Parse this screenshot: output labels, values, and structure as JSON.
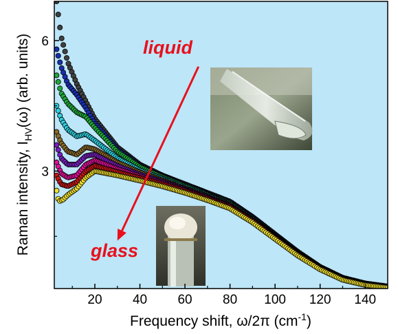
{
  "chart_data": {
    "type": "scatter",
    "title": "",
    "xlabel": "Frequency shift, ω/2π  (cm⁻¹)",
    "ylabel": "Raman intensity, I_HV(ω)  (arb. units)",
    "xlabel_parts": {
      "main": "Frequency shift, ω/2π  (cm",
      "sup": "-1",
      "close": ")"
    },
    "ylabel_parts": {
      "main": "Raman intensity, I",
      "sub": "HV",
      "rest": "(ω)  (arb. units)"
    },
    "xlim": [
      2,
      150
    ],
    "ylim": [
      0.3,
      6.9
    ],
    "x_ticks": [
      20,
      40,
      60,
      80,
      100,
      120,
      140
    ],
    "y_ticks": [
      3,
      6
    ],
    "background": "#bde6f8",
    "grid": false,
    "legend": "none",
    "annotations": [
      {
        "text": "liquid",
        "color": "#e8101c"
      },
      {
        "text": "glass",
        "color": "#e8101c"
      }
    ],
    "arrow": {
      "from": [
        66,
        5.4
      ],
      "to": [
        30,
        1.4
      ],
      "color": "#e8101c"
    },
    "insets": [
      {
        "name": "liquid-tube-photo",
        "description": "test tube with clear liquid"
      },
      {
        "name": "glass-tube-photo",
        "description": "vial with frosted glass top"
      }
    ],
    "series": [
      {
        "color": "#404040",
        "values": [
          [
            3,
            6.9
          ],
          [
            5,
            6.1
          ],
          [
            8,
            5.5
          ],
          [
            12,
            5.0
          ],
          [
            16,
            4.6
          ],
          [
            20,
            4.2
          ],
          [
            30,
            3.55
          ],
          [
            40,
            3.15
          ],
          [
            50,
            2.9
          ],
          [
            60,
            2.7
          ],
          [
            70,
            2.5
          ],
          [
            80,
            2.3
          ],
          [
            90,
            1.95
          ],
          [
            100,
            1.55
          ],
          [
            110,
            1.15
          ],
          [
            120,
            0.8
          ],
          [
            130,
            0.55
          ],
          [
            140,
            0.42
          ],
          [
            150,
            0.35
          ]
        ]
      },
      {
        "color": "#1a2fb0",
        "values": [
          [
            3,
            5.8
          ],
          [
            5,
            5.4
          ],
          [
            8,
            5.0
          ],
          [
            12,
            4.75
          ],
          [
            16,
            4.45
          ],
          [
            20,
            4.1
          ],
          [
            30,
            3.5
          ],
          [
            40,
            3.12
          ],
          [
            50,
            2.88
          ],
          [
            60,
            2.68
          ],
          [
            70,
            2.48
          ],
          [
            80,
            2.28
          ],
          [
            90,
            1.93
          ],
          [
            100,
            1.53
          ],
          [
            110,
            1.13
          ],
          [
            120,
            0.79
          ],
          [
            130,
            0.54
          ],
          [
            140,
            0.41
          ],
          [
            150,
            0.34
          ]
        ]
      },
      {
        "color": "#22a83a",
        "values": [
          [
            3,
            5.2
          ],
          [
            5,
            4.8
          ],
          [
            8,
            4.55
          ],
          [
            12,
            4.35
          ],
          [
            16,
            4.25
          ],
          [
            20,
            4.0
          ],
          [
            30,
            3.45
          ],
          [
            40,
            3.1
          ],
          [
            50,
            2.86
          ],
          [
            60,
            2.66
          ],
          [
            70,
            2.46
          ],
          [
            80,
            2.26
          ],
          [
            90,
            1.91
          ],
          [
            100,
            1.51
          ],
          [
            110,
            1.12
          ],
          [
            120,
            0.78
          ],
          [
            130,
            0.53
          ],
          [
            140,
            0.41
          ],
          [
            150,
            0.34
          ]
        ]
      },
      {
        "color": "#30d0e0",
        "values": [
          [
            3,
            4.5
          ],
          [
            5,
            4.2
          ],
          [
            8,
            3.95
          ],
          [
            12,
            3.8
          ],
          [
            16,
            3.85
          ],
          [
            20,
            3.7
          ],
          [
            30,
            3.3
          ],
          [
            40,
            3.02
          ],
          [
            50,
            2.82
          ],
          [
            60,
            2.63
          ],
          [
            70,
            2.44
          ],
          [
            80,
            2.24
          ],
          [
            90,
            1.9
          ],
          [
            100,
            1.5
          ],
          [
            110,
            1.11
          ],
          [
            120,
            0.78
          ],
          [
            130,
            0.53
          ],
          [
            140,
            0.4
          ],
          [
            150,
            0.34
          ]
        ]
      },
      {
        "color": "#8b6a2a",
        "values": [
          [
            3,
            3.9
          ],
          [
            5,
            3.65
          ],
          [
            8,
            3.45
          ],
          [
            12,
            3.38
          ],
          [
            16,
            3.55
          ],
          [
            20,
            3.5
          ],
          [
            30,
            3.2
          ],
          [
            40,
            2.97
          ],
          [
            50,
            2.79
          ],
          [
            60,
            2.6
          ],
          [
            70,
            2.42
          ],
          [
            80,
            2.22
          ],
          [
            90,
            1.88
          ],
          [
            100,
            1.49
          ],
          [
            110,
            1.1
          ],
          [
            120,
            0.77
          ],
          [
            130,
            0.52
          ],
          [
            140,
            0.4
          ],
          [
            150,
            0.33
          ]
        ]
      },
      {
        "color": "#7a1fc0",
        "values": [
          [
            3,
            3.6
          ],
          [
            5,
            3.3
          ],
          [
            8,
            3.15
          ],
          [
            12,
            3.15
          ],
          [
            16,
            3.35
          ],
          [
            20,
            3.38
          ],
          [
            30,
            3.12
          ],
          [
            40,
            2.92
          ],
          [
            50,
            2.76
          ],
          [
            60,
            2.58
          ],
          [
            70,
            2.4
          ],
          [
            80,
            2.2
          ],
          [
            90,
            1.87
          ],
          [
            100,
            1.48
          ],
          [
            110,
            1.09
          ],
          [
            120,
            0.77
          ],
          [
            130,
            0.52
          ],
          [
            140,
            0.4
          ],
          [
            150,
            0.33
          ]
        ]
      },
      {
        "color": "#e0109a",
        "values": [
          [
            3,
            3.2
          ],
          [
            5,
            2.95
          ],
          [
            8,
            2.85
          ],
          [
            12,
            2.9
          ],
          [
            16,
            3.15
          ],
          [
            20,
            3.25
          ],
          [
            30,
            3.05
          ],
          [
            40,
            2.88
          ],
          [
            50,
            2.73
          ],
          [
            60,
            2.56
          ],
          [
            70,
            2.38
          ],
          [
            80,
            2.19
          ],
          [
            90,
            1.86
          ],
          [
            100,
            1.47
          ],
          [
            110,
            1.09
          ],
          [
            120,
            0.76
          ],
          [
            130,
            0.52
          ],
          [
            140,
            0.39
          ],
          [
            150,
            0.33
          ]
        ]
      },
      {
        "color": "#c81818",
        "values": [
          [
            3,
            2.9
          ],
          [
            5,
            2.7
          ],
          [
            8,
            2.65
          ],
          [
            12,
            2.75
          ],
          [
            16,
            3.0
          ],
          [
            20,
            3.12
          ],
          [
            30,
            2.98
          ],
          [
            40,
            2.84
          ],
          [
            50,
            2.7
          ],
          [
            60,
            2.54
          ],
          [
            70,
            2.36
          ],
          [
            80,
            2.17
          ],
          [
            90,
            1.85
          ],
          [
            100,
            1.46
          ],
          [
            110,
            1.08
          ],
          [
            120,
            0.76
          ],
          [
            130,
            0.51
          ],
          [
            140,
            0.39
          ],
          [
            150,
            0.33
          ]
        ]
      },
      {
        "color": "#f0e030",
        "values": [
          [
            3,
            2.55
          ],
          [
            4,
            2.3
          ],
          [
            6,
            2.35
          ],
          [
            8,
            2.45
          ],
          [
            12,
            2.6
          ],
          [
            16,
            2.85
          ],
          [
            20,
            3.0
          ],
          [
            30,
            2.9
          ],
          [
            40,
            2.78
          ],
          [
            50,
            2.65
          ],
          [
            60,
            2.5
          ],
          [
            70,
            2.33
          ],
          [
            80,
            2.14
          ],
          [
            90,
            1.82
          ],
          [
            100,
            1.44
          ],
          [
            110,
            1.06
          ],
          [
            120,
            0.74
          ],
          [
            130,
            0.5
          ],
          [
            140,
            0.38
          ],
          [
            150,
            0.32
          ]
        ]
      }
    ]
  }
}
